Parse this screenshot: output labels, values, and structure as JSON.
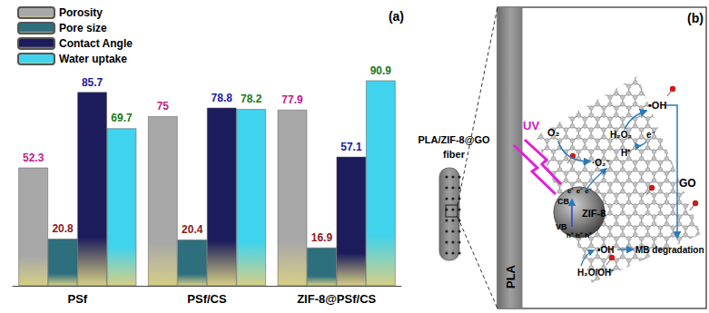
{
  "chart_data": {
    "type": "bar",
    "title": "(a)",
    "categories": [
      "PSf",
      "PSf/CS",
      "ZIF-8@PSf/CS"
    ],
    "series": [
      {
        "name": "Porosity",
        "color": "#a8a8a8",
        "values": [
          52.3,
          75,
          77.9
        ]
      },
      {
        "name": "Pore size",
        "color": "#2e6f7e",
        "values": [
          20.8,
          20.4,
          16.9
        ]
      },
      {
        "name": "Contact Angle",
        "color": "#1c1c5c",
        "values": [
          85.7,
          78.8,
          57.1
        ]
      },
      {
        "name": "Water uptake",
        "color": "#3fd3ee",
        "values": [
          69.7,
          78.2,
          90.9
        ]
      }
    ],
    "ylim": [
      0,
      100
    ],
    "grid": false,
    "legend": "top-left",
    "data_labels": true,
    "tick_labels": "x"
  },
  "diagram": {
    "title": "(b)",
    "fiber_label": [
      "PLA/ZIF-8@GO",
      "fiber"
    ],
    "substrate": "PLA",
    "sheet": "GO",
    "particle": "ZIF-8",
    "light": "UV",
    "bands": {
      "cb": "CB",
      "vb": "VB",
      "electrons": "e⁻ e⁻ e⁻",
      "holes": "h⁺ h⁺ h⁺"
    },
    "species": {
      "oxygen": "O₂",
      "superoxide": "·O₂⁻",
      "peroxide": "H₂O₂",
      "electron": "e⁻",
      "proton": "H⁺",
      "hydroxyl_top": "•OH",
      "water": "H₂O/OH⁻",
      "hydroxyl_bottom": "•OH"
    },
    "product": "MB degradation"
  }
}
